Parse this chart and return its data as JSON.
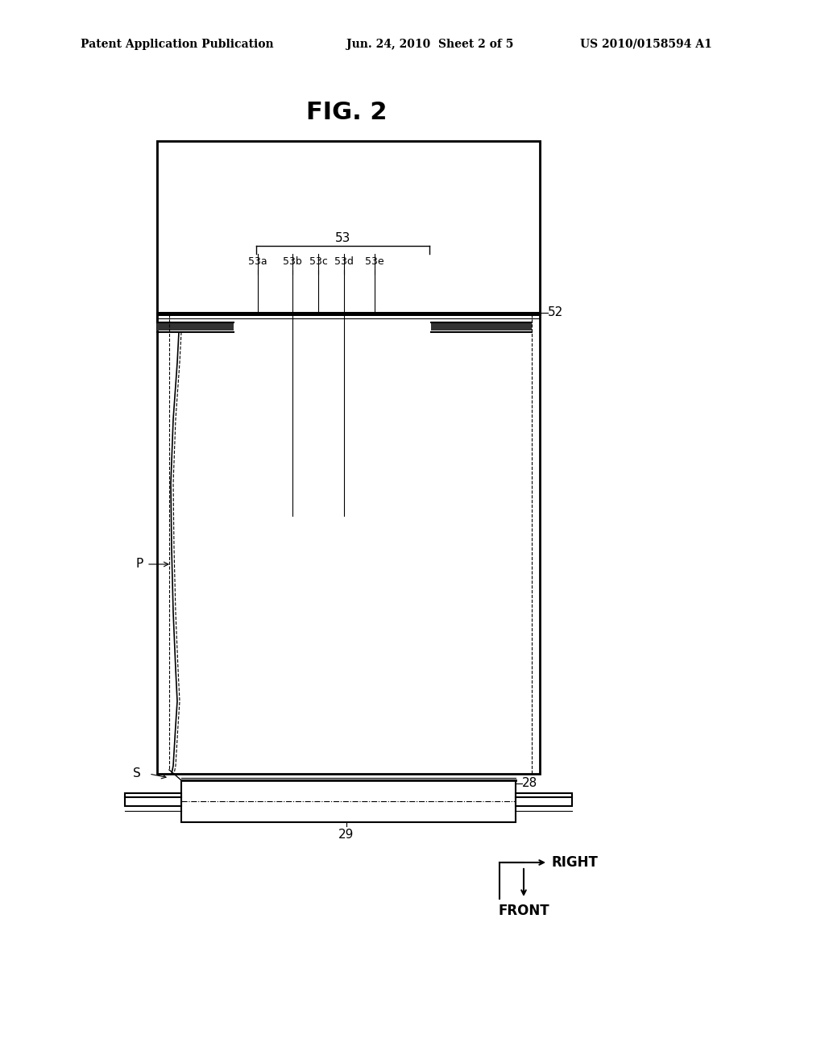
{
  "bg_color": "#ffffff",
  "header_left": "Patent Application Publication",
  "header_center": "Jun. 24, 2010  Sheet 2 of 5",
  "header_right": "US 2010/0158594 A1",
  "fig_title": "FIG. 2",
  "label_53": "53",
  "label_53a": "53a",
  "label_53b": "53b",
  "label_53c": "53c",
  "label_53d": "53d",
  "label_53e": "53e",
  "label_52": "52",
  "label_28": "28",
  "label_29": "29",
  "label_P": "P",
  "label_S": "S",
  "label_RIGHT": "RIGHT",
  "label_FRONT": "FRONT"
}
